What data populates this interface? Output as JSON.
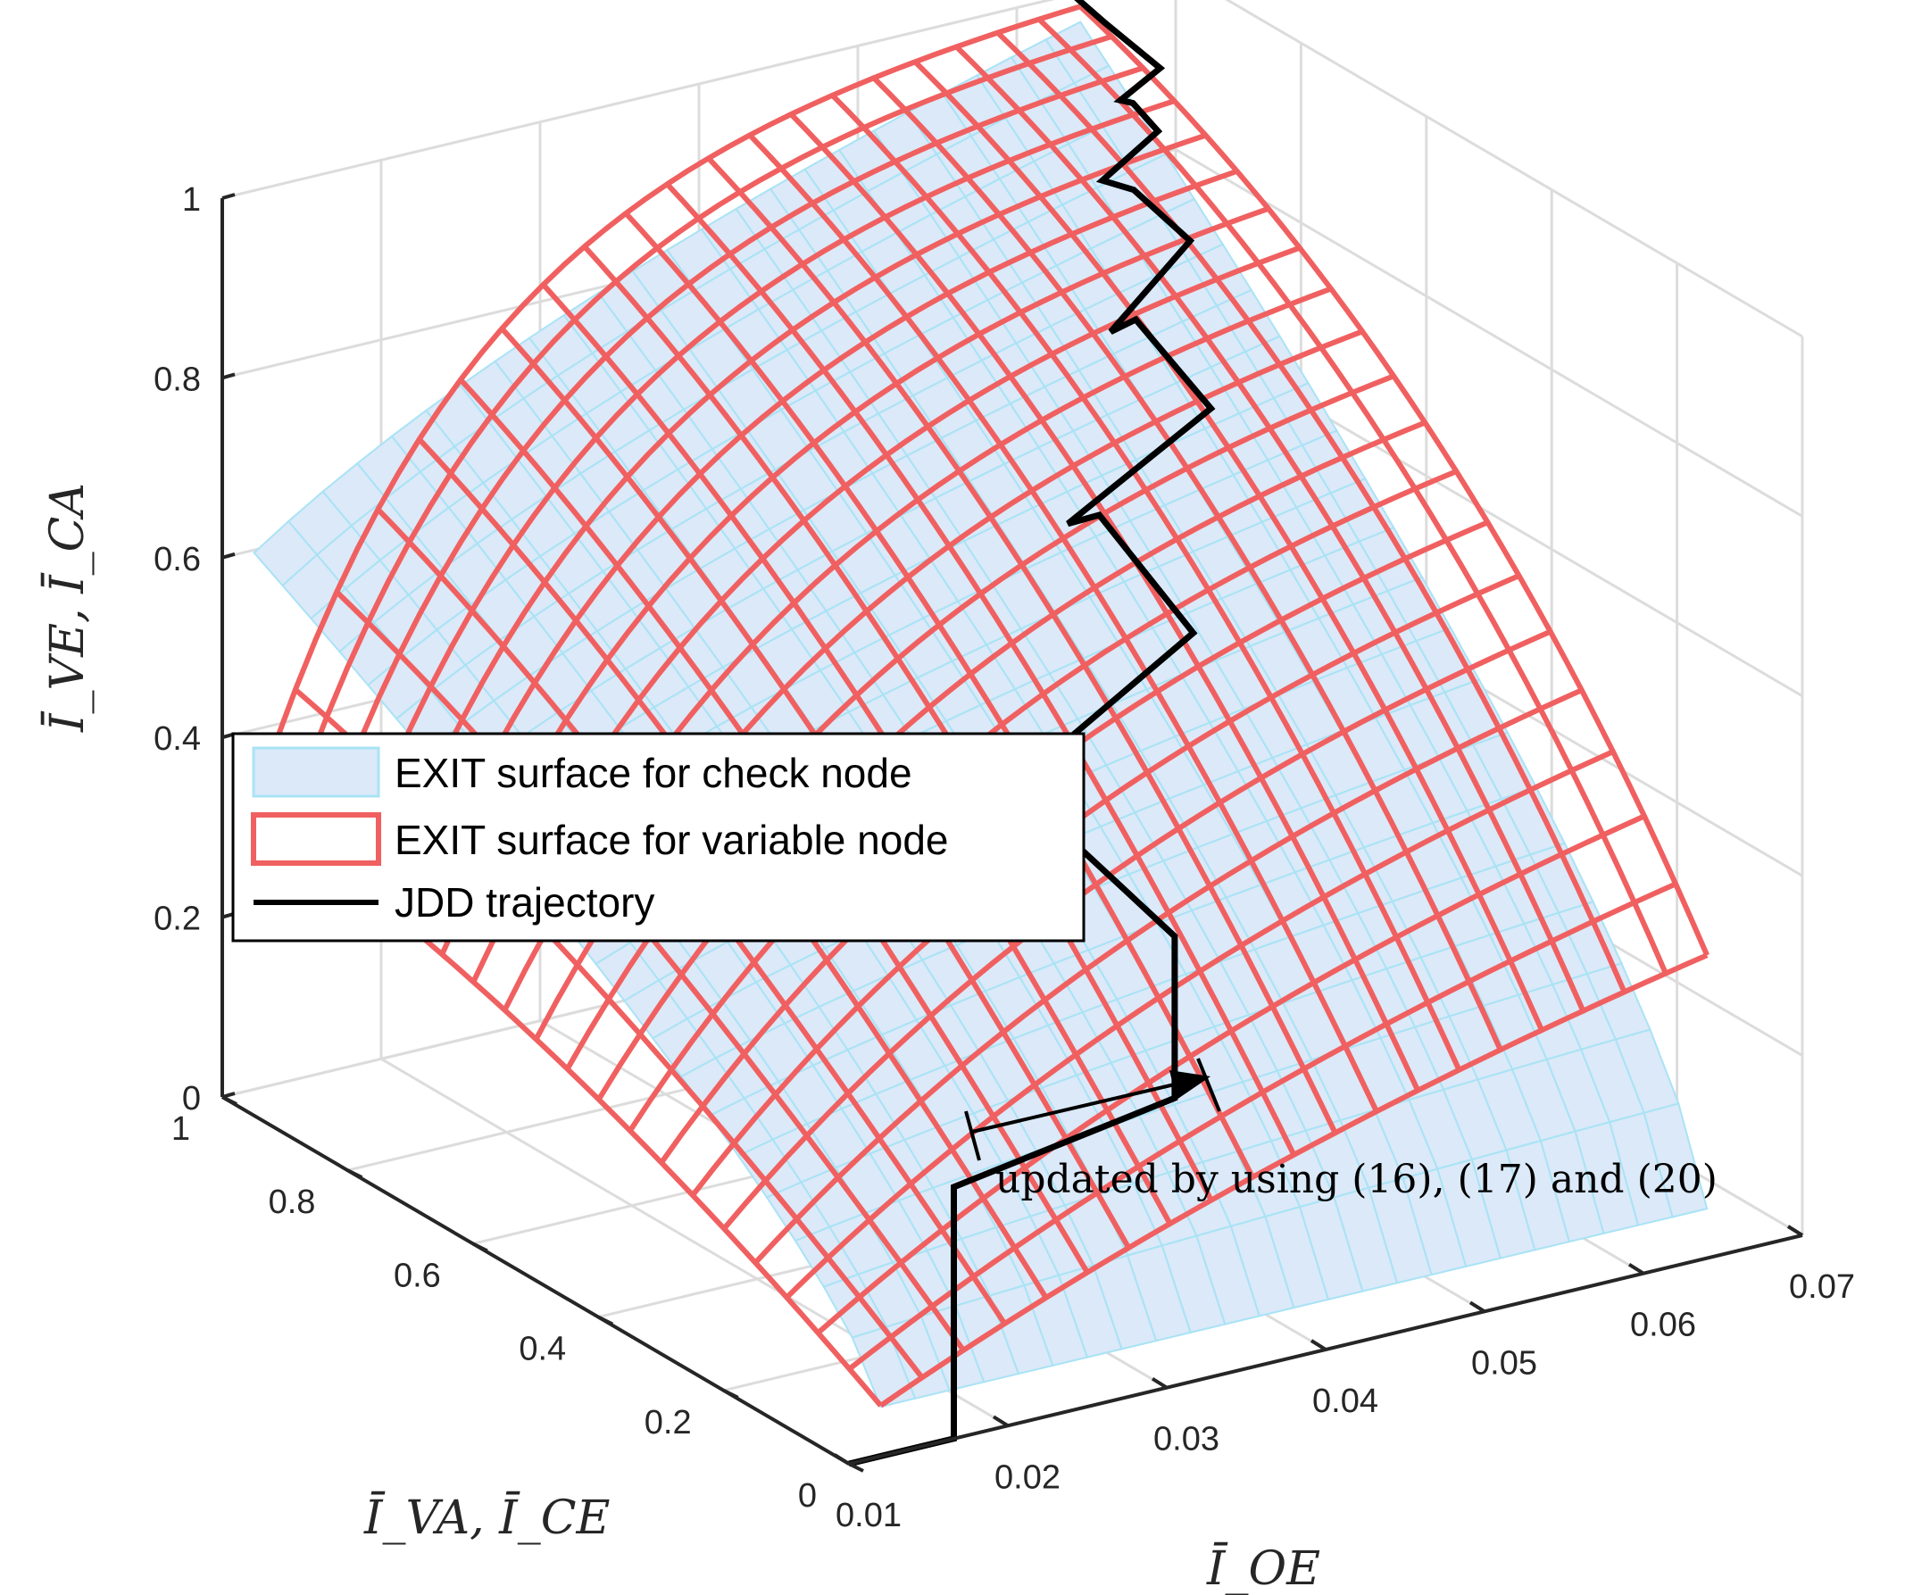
{
  "chart_data": {
    "type": "surface3d",
    "title": "",
    "x_axis": {
      "label": "Ī_OE",
      "ticks": [
        "0.01",
        "0.02",
        "0.03",
        "0.04",
        "0.05",
        "0.06",
        "0.07"
      ],
      "range": [
        0.01,
        0.07
      ]
    },
    "y_axis": {
      "label": "Ī_VA, Ī_CE",
      "ticks": [
        "0",
        "0.2",
        "0.4",
        "0.6",
        "0.8",
        "1"
      ],
      "range": [
        0,
        1
      ]
    },
    "z_axis": {
      "label": "Ī_VE, Ī_CA",
      "ticks": [
        "0",
        "0.2",
        "0.4",
        "0.6",
        "0.8",
        "1"
      ],
      "range": [
        0,
        1
      ]
    },
    "grid": true,
    "legend_position": "left-middle",
    "series": [
      {
        "name": "EXIT surface for check node",
        "kind": "surface",
        "face_color": "#dbe9f8",
        "edge_color": "#a9e3f5",
        "a_range": [
          0.0,
          1.0
        ],
        "x_range": [
          0.012,
          0.064
        ]
      },
      {
        "name": "EXIT surface for variable node",
        "kind": "mesh",
        "edge_color": "#f06060",
        "a_range": [
          0.0,
          1.0
        ],
        "x_range": [
          0.012,
          0.064
        ]
      },
      {
        "name": "JDD trajectory",
        "kind": "line",
        "color": "#000000",
        "points": [
          {
            "x": 0.01,
            "y": 0.0,
            "z": 0.0
          },
          {
            "x": 0.0166,
            "y": 0.0,
            "z": 0.0
          },
          {
            "x": 0.0166,
            "y": 0.0,
            "z": 0.015
          },
          {
            "x": 0.0166,
            "y": 0.0,
            "z": 0.24
          },
          {
            "x": 0.0166,
            "y": 0.0,
            "z": 0.28
          },
          {
            "x": 0.0305,
            "y": 0.0,
            "z": 0.32
          },
          {
            "x": 0.0305,
            "y": 0.0,
            "z": 0.5
          },
          {
            "x": 0.0305,
            "y": 0.25,
            "z": 0.56
          },
          {
            "x": 0.0305,
            "y": 0.3,
            "z": 0.52
          },
          {
            "x": 0.0435,
            "y": 0.3,
            "z": 0.66
          },
          {
            "x": 0.0435,
            "y": 0.45,
            "z": 0.73
          },
          {
            "x": 0.0435,
            "y": 0.5,
            "z": 0.7
          },
          {
            "x": 0.0525,
            "y": 0.5,
            "z": 0.79
          },
          {
            "x": 0.0525,
            "y": 0.62,
            "z": 0.84
          },
          {
            "x": 0.0525,
            "y": 0.66,
            "z": 0.81
          },
          {
            "x": 0.0575,
            "y": 0.66,
            "z": 0.89
          },
          {
            "x": 0.0575,
            "y": 0.75,
            "z": 0.91
          },
          {
            "x": 0.0575,
            "y": 0.8,
            "z": 0.9
          },
          {
            "x": 0.061,
            "y": 0.8,
            "z": 0.94
          },
          {
            "x": 0.061,
            "y": 0.84,
            "z": 0.955
          },
          {
            "x": 0.061,
            "y": 0.86,
            "z": 0.95
          },
          {
            "x": 0.0635,
            "y": 0.86,
            "z": 0.975
          },
          {
            "x": 0.0635,
            "y": 0.95,
            "z": 0.99
          },
          {
            "x": 0.0635,
            "y": 1.0,
            "z": 1.0
          }
        ]
      }
    ],
    "annotations": [
      {
        "text": "updated by using (16), (17) and (20)",
        "arrow_from": {
          "x": 0.0166,
          "y": 0.0,
          "z": 0.015
        },
        "arrow_to": {
          "x": 0.0305,
          "y": 0.0,
          "z": 0.015
        }
      }
    ]
  }
}
